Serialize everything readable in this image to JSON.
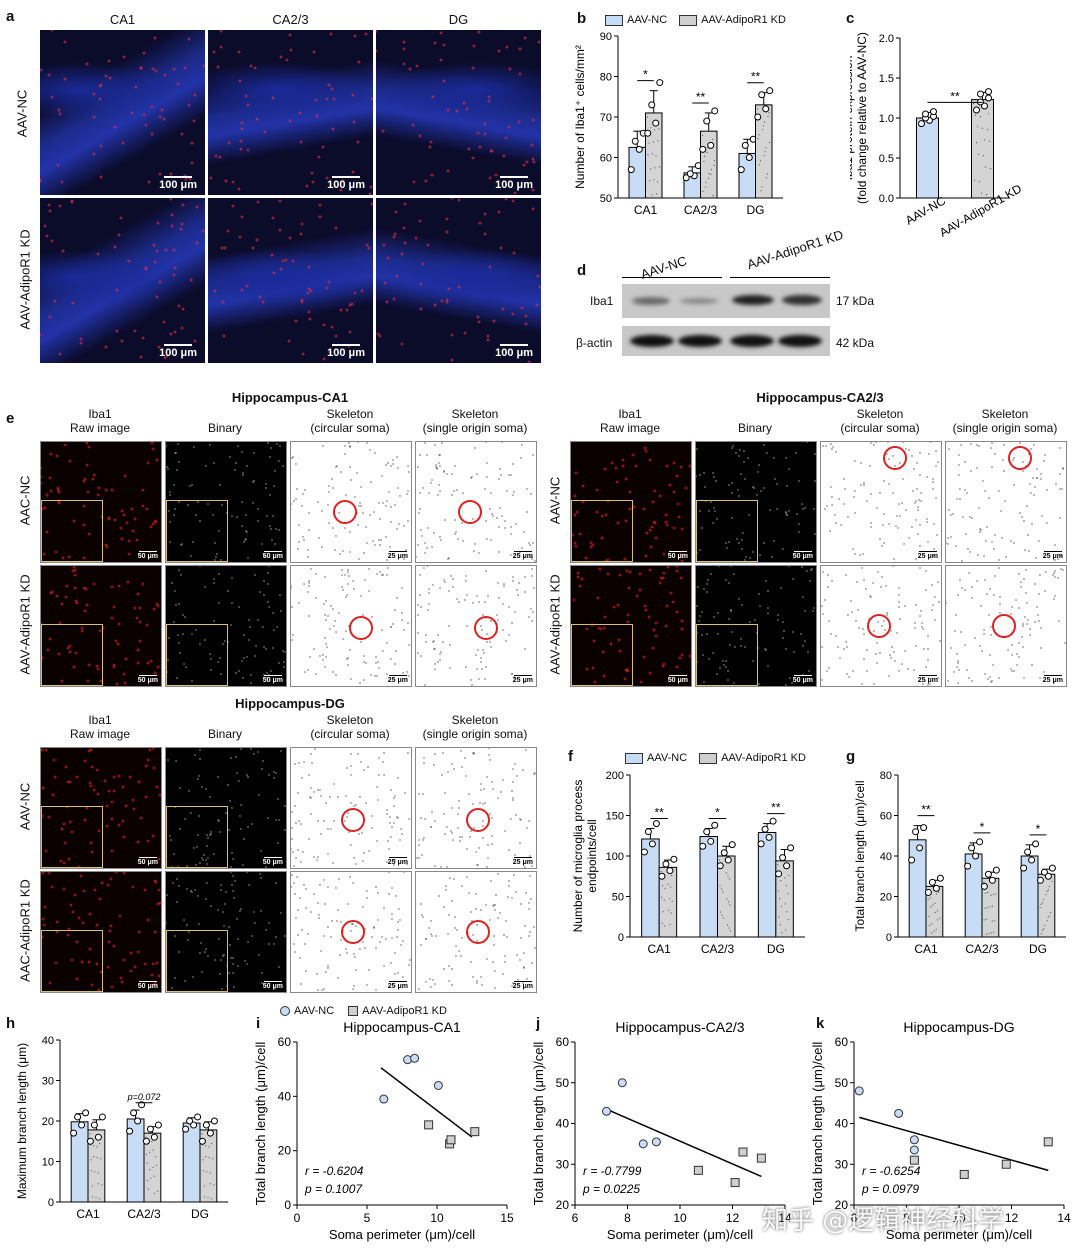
{
  "panels": {
    "a": "a",
    "b": "b",
    "c": "c",
    "d": "d",
    "e": "e",
    "f": "f",
    "g": "g",
    "h": "h",
    "i": "i",
    "j": "j",
    "k": "k"
  },
  "panel_a": {
    "cols": [
      "CA1",
      "CA2/3",
      "DG"
    ],
    "rows": [
      "AAV-NC",
      "AAV-AdipoR1 KD"
    ],
    "scale": "100 μm",
    "colors": {
      "nuclei": "#1a2a9a",
      "iba1": "#d8304a"
    }
  },
  "legend": {
    "nc": "AAV-NC",
    "kd": "AAV-AdipoR1 KD",
    "nc_color": "#c9dcf5",
    "kd_color": "#cfcfcf"
  },
  "panel_d": {
    "groups": [
      "AAV-NC",
      "AAV-AdipoR1 KD"
    ],
    "bands": [
      {
        "name": "Iba1",
        "size": "17 kDa"
      },
      {
        "name": "β-actin",
        "size": "42 kDa"
      }
    ]
  },
  "panel_e": {
    "sections": [
      "Hippocampus-CA1",
      "Hippocampus-CA2/3",
      "Hippocampus-DG"
    ],
    "cols": [
      {
        "l1": "Iba1",
        "l2": "Raw image"
      },
      {
        "l1": "",
        "l2": "Binary"
      },
      {
        "l1": "Skeleton",
        "l2": "(circular soma)"
      },
      {
        "l1": "Skeleton",
        "l2": "(single origin soma)"
      }
    ],
    "rows_ca1": [
      "AAC-NC",
      "AAV-AdipoR1 KD"
    ],
    "rows_ca23": [
      "AAV-NC",
      "AAV-AdipoR1 KD"
    ],
    "rows_dg": [
      "AAV-NC",
      "AAC-AdipoR1 KD"
    ],
    "scale_50": "50 μm",
    "scale_25": "25 μm"
  },
  "chart_data": [
    {
      "id": "b",
      "type": "bar",
      "categories": [
        "CA1",
        "CA2/3",
        "DG"
      ],
      "ylabel": "Number of Iba1⁺ cells/mm²",
      "ylim": [
        50,
        90
      ],
      "yticks": [
        50,
        60,
        70,
        80,
        90
      ],
      "series": [
        {
          "name": "AAV-NC",
          "values": [
            62.5,
            56.2,
            61
          ],
          "sd": [
            4,
            1.5,
            3.5
          ],
          "points": [
            [
              57,
              62,
              64,
              66
            ],
            [
              55,
              55.5,
              56,
              58
            ],
            [
              57,
              60,
              63,
              64.5
            ]
          ]
        },
        {
          "name": "AAV-AdipoR1 KD",
          "values": [
            71,
            66.5,
            73
          ],
          "sd": [
            5.5,
            4.5,
            3
          ],
          "points": [
            [
              66,
              68.5,
              73,
              78.5
            ],
            [
              62,
              63,
              69,
              71.5
            ],
            [
              70,
              72,
              75.5,
              76.5
            ]
          ]
        }
      ],
      "sig": [
        "*",
        "**",
        "**"
      ]
    },
    {
      "id": "c",
      "type": "bar",
      "categories": [
        "AAV-NC",
        "AAV-AdipoR1 KD"
      ],
      "ylabel": "Iba1 protein expression\n(fold change relative to AAV-NC)",
      "ylim": [
        0,
        2.0
      ],
      "yticks": [
        0.0,
        0.5,
        1.0,
        1.5,
        2.0
      ],
      "values": [
        1.0,
        1.23
      ],
      "sd": [
        0.07,
        0.09
      ],
      "points": [
        [
          0.93,
          0.97,
          1.0,
          1.02,
          1.05,
          1.08
        ],
        [
          1.1,
          1.15,
          1.2,
          1.25,
          1.3,
          1.33
        ]
      ],
      "sig": [
        "**"
      ]
    },
    {
      "id": "f",
      "type": "bar",
      "categories": [
        "CA1",
        "CA2/3",
        "DG"
      ],
      "ylabel": "Number of microglia process\nendpoints/cell",
      "ylim": [
        0,
        200
      ],
      "yticks": [
        0,
        50,
        100,
        150,
        200
      ],
      "series": [
        {
          "name": "AAV-NC",
          "values": [
            121,
            124,
            129
          ],
          "sd": [
            13,
            10,
            11
          ],
          "points": [
            [
              105,
              115,
              130,
              140
            ],
            [
              112,
              118,
              130,
              138
            ],
            [
              115,
              123,
              133,
              143
            ]
          ]
        },
        {
          "name": "AAV-AdipoR1 KD",
          "values": [
            86,
            100,
            94
          ],
          "sd": [
            9,
            12,
            14
          ],
          "points": [
            [
              75,
              82,
              90,
              96
            ],
            [
              88,
              95,
              104,
              114
            ],
            [
              78,
              88,
              98,
              110
            ]
          ]
        }
      ],
      "sig": [
        "**",
        "*",
        "**"
      ]
    },
    {
      "id": "g",
      "type": "bar",
      "categories": [
        "CA1",
        "CA2/3",
        "DG"
      ],
      "ylabel": "Total branch length (μm)/cell",
      "ylim": [
        0,
        80
      ],
      "yticks": [
        0,
        20,
        40,
        60,
        80
      ],
      "series": [
        {
          "name": "AAV-NC",
          "values": [
            48,
            41,
            40
          ],
          "sd": [
            7,
            5.5,
            5.5
          ],
          "points": [
            [
              38,
              44,
              52,
              54
            ],
            [
              35,
              40,
              44,
              47
            ],
            [
              34,
              38,
              42,
              46
            ]
          ]
        },
        {
          "name": "AAV-AdipoR1 KD",
          "values": [
            25,
            29,
            31
          ],
          "sd": [
            3,
            3,
            2.5
          ],
          "points": [
            [
              22,
              24,
              27,
              29
            ],
            [
              25,
              28,
              31,
              33
            ],
            [
              28,
              30,
              32,
              34
            ]
          ]
        }
      ],
      "sig": [
        "**",
        "*",
        "*"
      ]
    },
    {
      "id": "h",
      "type": "bar",
      "categories": [
        "CA1",
        "CA2/3",
        "DG"
      ],
      "ylabel": "Maximum branch length (μm)",
      "ylim": [
        0,
        40
      ],
      "yticks": [
        0,
        10,
        20,
        30,
        40
      ],
      "series": [
        {
          "name": "AAV-NC",
          "values": [
            19.8,
            20.5,
            19.5
          ],
          "sd": [
            2,
            2.2,
            1.3
          ],
          "points": [
            [
              17,
              19,
              21,
              22
            ],
            [
              17.5,
              20,
              22,
              24
            ],
            [
              18,
              19,
              20,
              21
            ]
          ]
        },
        {
          "name": "AAV-AdipoR1 KD",
          "values": [
            17.8,
            17,
            17.8
          ],
          "sd": [
            2.5,
            1.6,
            2
          ],
          "points": [
            [
              15,
              16,
              19,
              21
            ],
            [
              15,
              16,
              18,
              19
            ],
            [
              15,
              17,
              19,
              20
            ]
          ]
        }
      ],
      "note": "p=0.072"
    },
    {
      "id": "i",
      "type": "scatter",
      "title": "Hippocampus-CA1",
      "xlabel": "Soma perimeter (μm)/cell",
      "ylabel": "Total branch length (μm)/cell",
      "xlim": [
        0,
        15
      ],
      "ylim": [
        0,
        60
      ],
      "xticks": [
        0,
        5,
        10,
        15
      ],
      "yticks": [
        0,
        20,
        40,
        60
      ],
      "series": [
        {
          "name": "AAV-NC",
          "points": [
            [
              6.2,
              39
            ],
            [
              7.9,
              53.5
            ],
            [
              8.4,
              54
            ],
            [
              10.1,
              44
            ]
          ]
        },
        {
          "name": "AAV-AdipoR1 KD",
          "points": [
            [
              9.4,
              29.5
            ],
            [
              10.9,
              22.5
            ],
            [
              11.0,
              24
            ],
            [
              12.7,
              27
            ]
          ]
        }
      ],
      "fit": [
        [
          6,
          50.5
        ],
        [
          12.5,
          25
        ]
      ],
      "r": "r = -0.6204",
      "p": "p = 0.1007"
    },
    {
      "id": "j",
      "type": "scatter",
      "title": "Hippocampus-CA2/3",
      "xlabel": "Soma perimeter (μm)/cell",
      "ylabel": "Total branch length (μm)/cell",
      "xlim": [
        6,
        14
      ],
      "ylim": [
        20,
        60
      ],
      "xticks": [
        6,
        8,
        10,
        12,
        14
      ],
      "yticks": [
        20,
        30,
        40,
        50,
        60
      ],
      "series": [
        {
          "name": "AAV-NC",
          "points": [
            [
              7.2,
              43
            ],
            [
              7.8,
              50
            ],
            [
              8.6,
              35
            ],
            [
              9.1,
              35.5
            ]
          ]
        },
        {
          "name": "AAV-AdipoR1 KD",
          "points": [
            [
              10.7,
              28.5
            ],
            [
              12.1,
              25.5
            ],
            [
              12.4,
              33
            ],
            [
              13.1,
              31.5
            ]
          ]
        }
      ],
      "fit": [
        [
          7.2,
          43.5
        ],
        [
          13.1,
          27
        ]
      ],
      "r": "r = -0.7799",
      "p": "p = 0.0225"
    },
    {
      "id": "k",
      "type": "scatter",
      "title": "Hippocampus-DG",
      "xlabel": "Soma perimeter (μm)/cell",
      "ylabel": "Total branch length (μm)/cell",
      "xlim": [
        6,
        14
      ],
      "ylim": [
        20,
        60
      ],
      "xticks": [
        6,
        8,
        10,
        12,
        14
      ],
      "yticks": [
        20,
        30,
        40,
        50,
        60
      ],
      "series": [
        {
          "name": "AAV-NC",
          "points": [
            [
              6.2,
              48
            ],
            [
              7.7,
              42.5
            ],
            [
              8.3,
              36
            ],
            [
              8.3,
              33.5
            ]
          ]
        },
        {
          "name": "AAV-AdipoR1 KD",
          "points": [
            [
              8.3,
              31
            ],
            [
              10.2,
              27.5
            ],
            [
              11.8,
              30
            ],
            [
              13.4,
              35.5
            ]
          ]
        }
      ],
      "fit": [
        [
          6.2,
          41.5
        ],
        [
          13.4,
          28.5
        ]
      ],
      "r": "r = -0.6254",
      "p": "p = 0.0979"
    }
  ],
  "watermark": "知乎 @逻辑神经科学"
}
